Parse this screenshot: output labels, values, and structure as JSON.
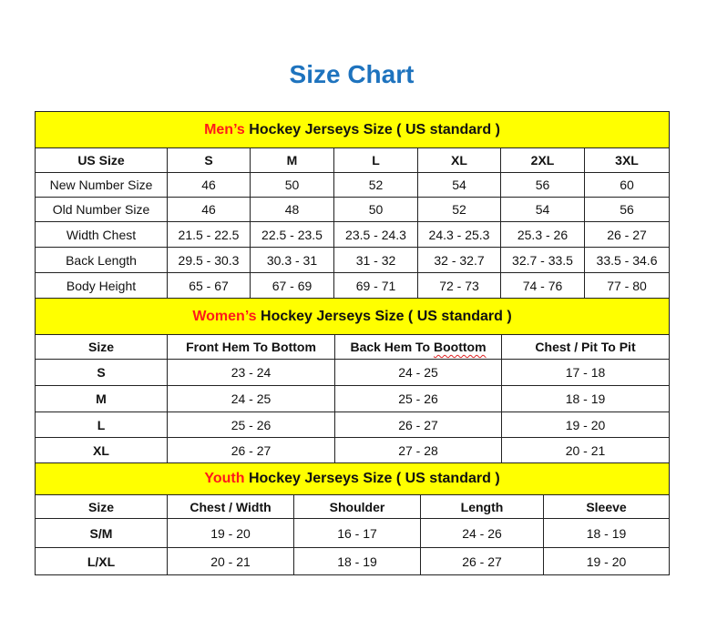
{
  "title": "Size Chart",
  "colors": {
    "title": "#1e73be",
    "band": "#ffff00",
    "highlight": "#ff1a1a"
  },
  "men": {
    "band_highlight": "Men’s",
    "band_rest": " Hockey Jerseys Size ( US standard )",
    "header": [
      "US Size",
      "S",
      "M",
      "L",
      "XL",
      "2XL",
      "3XL"
    ],
    "rows": [
      [
        "New Number Size",
        "46",
        "50",
        "52",
        "54",
        "56",
        "60"
      ],
      [
        "Old Number Size",
        "46",
        "48",
        "50",
        "52",
        "54",
        "56"
      ],
      [
        "Width Chest",
        "21.5 - 22.5",
        "22.5 - 23.5",
        "23.5 - 24.3",
        "24.3 - 25.3",
        "25.3 - 26",
        "26 - 27"
      ],
      [
        "Back Length",
        "29.5 - 30.3",
        "30.3 - 31",
        "31 - 32",
        "32 - 32.7",
        "32.7 - 33.5",
        "33.5 - 34.6"
      ],
      [
        "Body Height",
        "65 - 67",
        "67 - 69",
        "69 - 71",
        "72 - 73",
        "74 - 76",
        "77 - 80"
      ]
    ]
  },
  "women": {
    "band_highlight": "Women’s",
    "band_rest": " Hockey Jerseys Size ( US standard )",
    "header": [
      "Size",
      "Front Hem To Bottom",
      "Back Hem To Boottom",
      "Chest / Pit To Pit"
    ],
    "rows": [
      [
        "S",
        "23 - 24",
        "24 - 25",
        "17 - 18"
      ],
      [
        "M",
        "24 - 25",
        "25 - 26",
        "18 - 19"
      ],
      [
        "L",
        "25 - 26",
        "26 - 27",
        "19 - 20"
      ],
      [
        "XL",
        "26 - 27",
        "27 - 28",
        "20 - 21"
      ]
    ]
  },
  "youth": {
    "band_highlight": "Youth",
    "band_rest": " Hockey Jerseys Size ( US standard )",
    "header": [
      "Size",
      "Chest / Width",
      "Shoulder",
      "Length",
      "Sleeve"
    ],
    "rows": [
      [
        "S/M",
        "19 - 20",
        "16 - 17",
        "24 - 26",
        "18 - 19"
      ],
      [
        "L/XL",
        "20 - 21",
        "18 - 19",
        "26 - 27",
        "19 - 20"
      ]
    ]
  }
}
